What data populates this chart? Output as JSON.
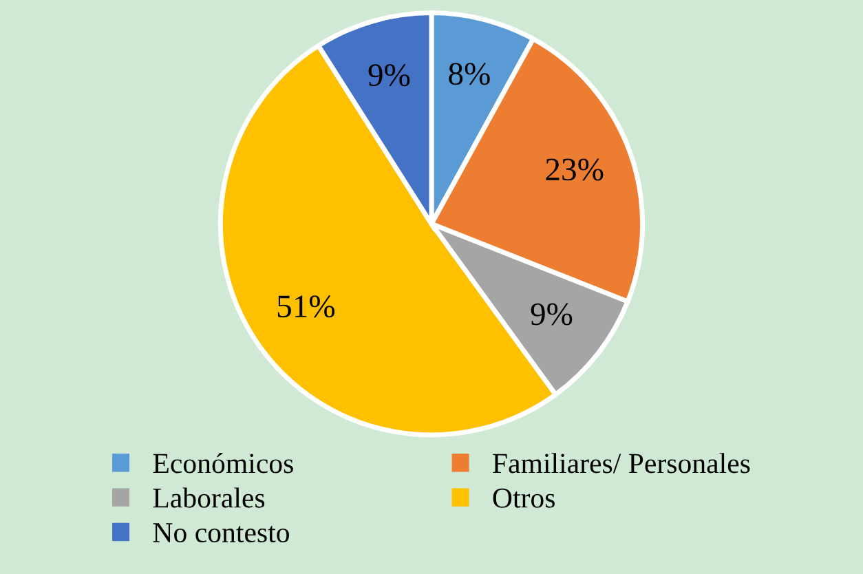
{
  "chart_data": {
    "type": "pie",
    "categories": [
      "Económicos",
      "Familiares/ Personales",
      "Laborales",
      "Otros",
      "No contesto"
    ],
    "values": [
      8,
      23,
      9,
      51,
      9
    ],
    "value_labels": [
      "8%",
      "23%",
      "9%",
      "51%",
      "9%"
    ],
    "colors": [
      "#5b9bd5",
      "#ed7d31",
      "#a5a5a5",
      "#ffc000",
      "#4472c4"
    ],
    "legend": "bottom"
  }
}
